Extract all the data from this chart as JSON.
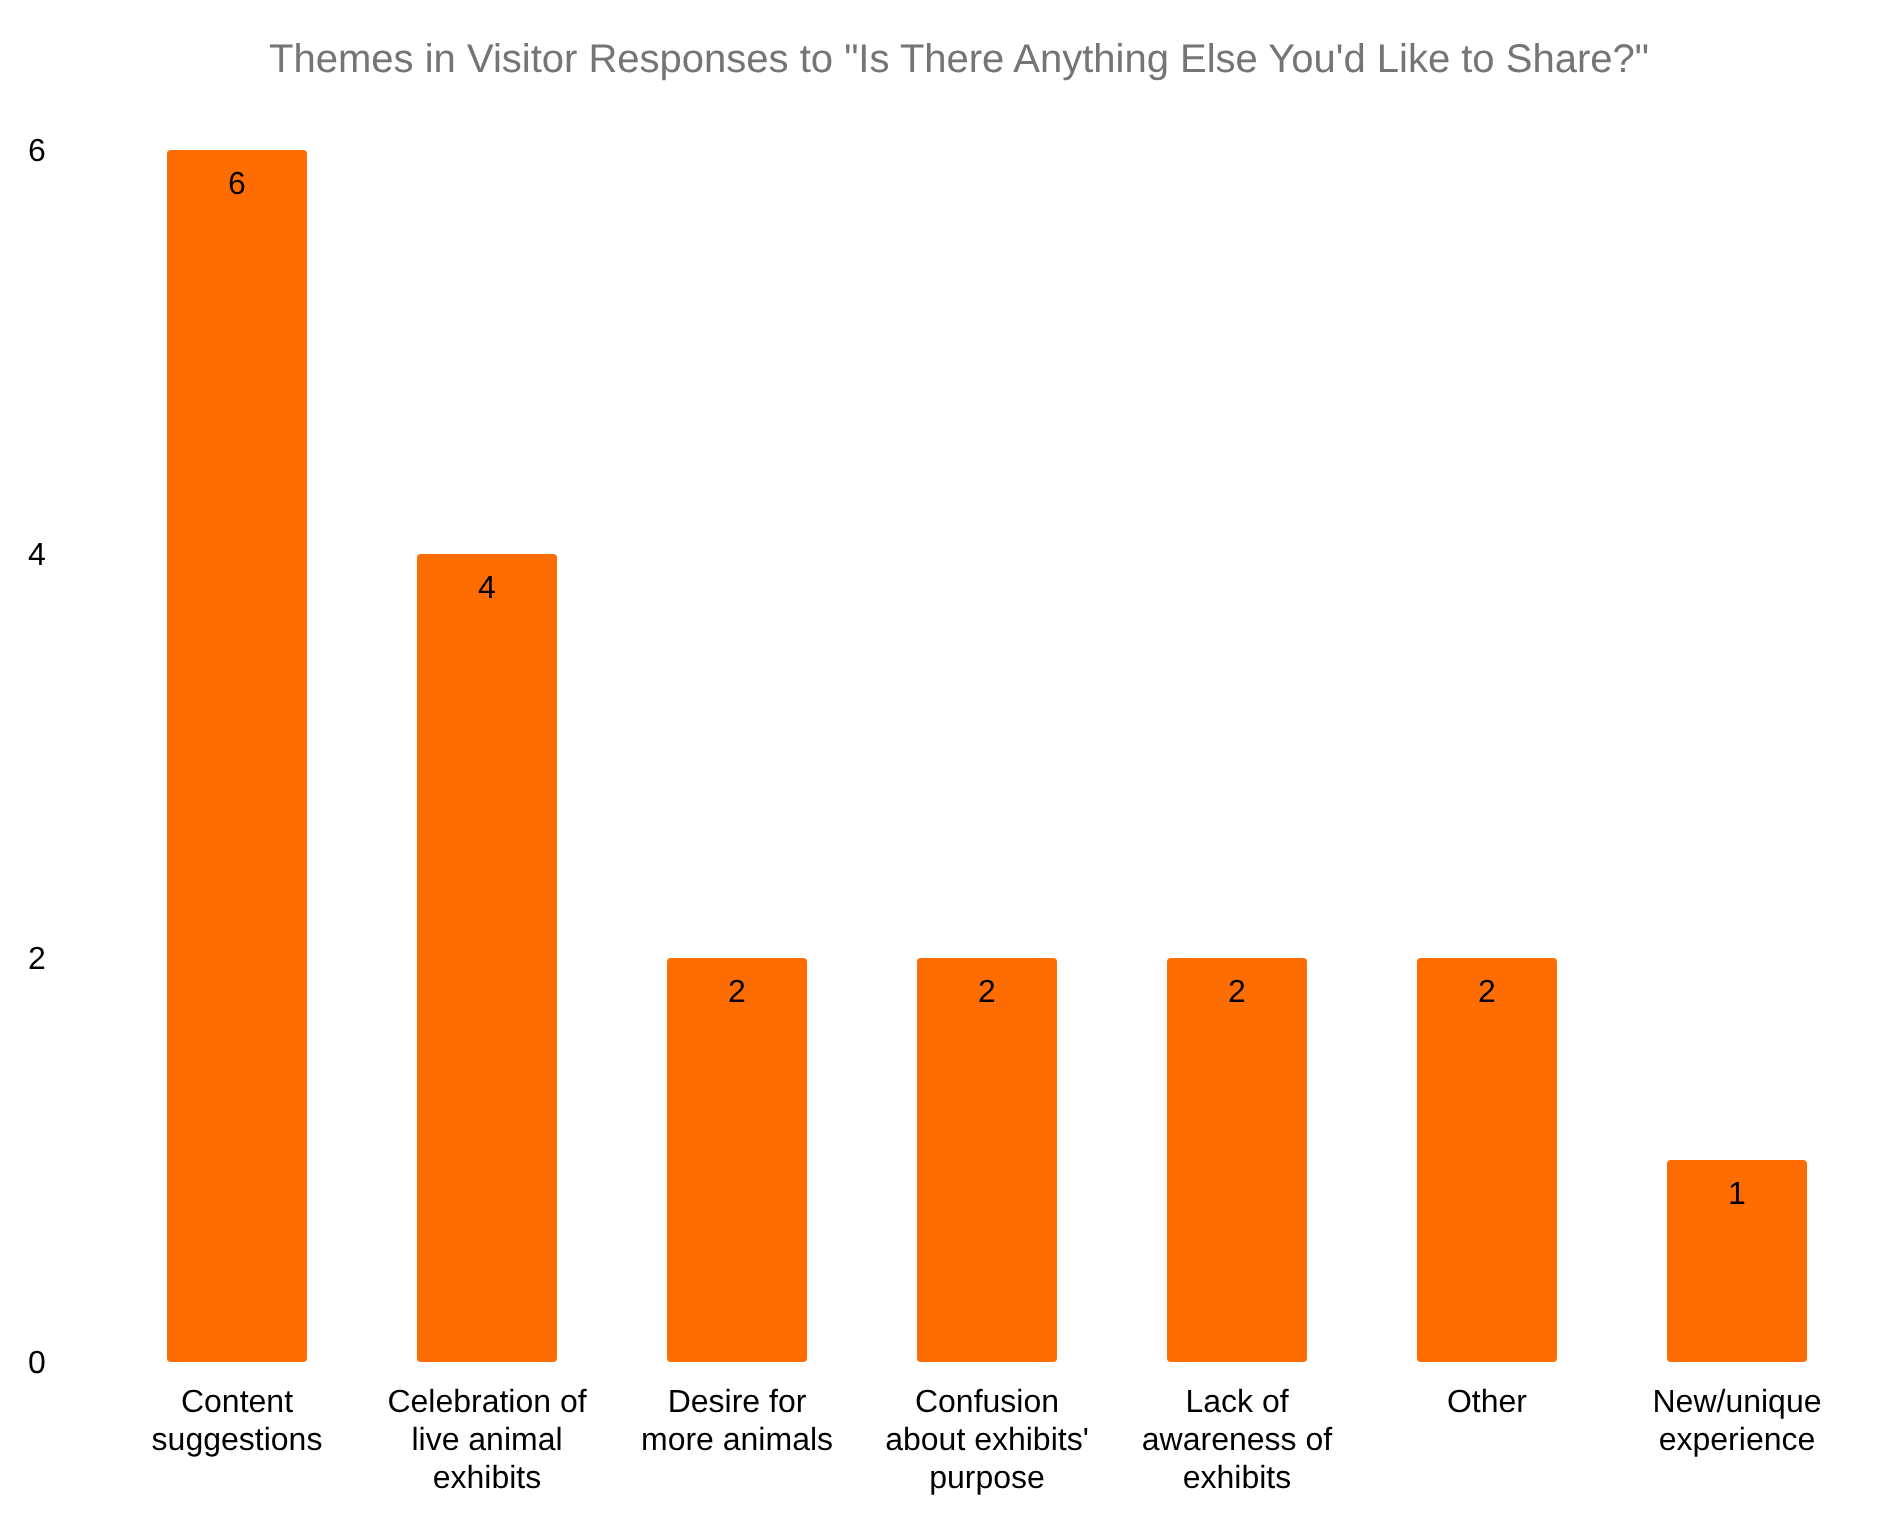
{
  "chart_data": {
    "type": "bar",
    "title": "Themes in Visitor Responses to \"Is There Anything Else You'd Like to Share?\"",
    "categories": [
      "Content suggestions",
      "Celebration of live animal exhibits",
      "Desire for more animals",
      "Confusion about exhibits' purpose",
      "Lack of awareness of exhibits",
      "Other",
      "New/unique experience"
    ],
    "values": [
      6,
      4,
      2,
      2,
      2,
      2,
      1
    ],
    "color": "#ff6d01",
    "ylim": [
      0,
      6
    ],
    "yticks": [
      0,
      2,
      4,
      6
    ],
    "grid": false,
    "data_labels": true
  }
}
